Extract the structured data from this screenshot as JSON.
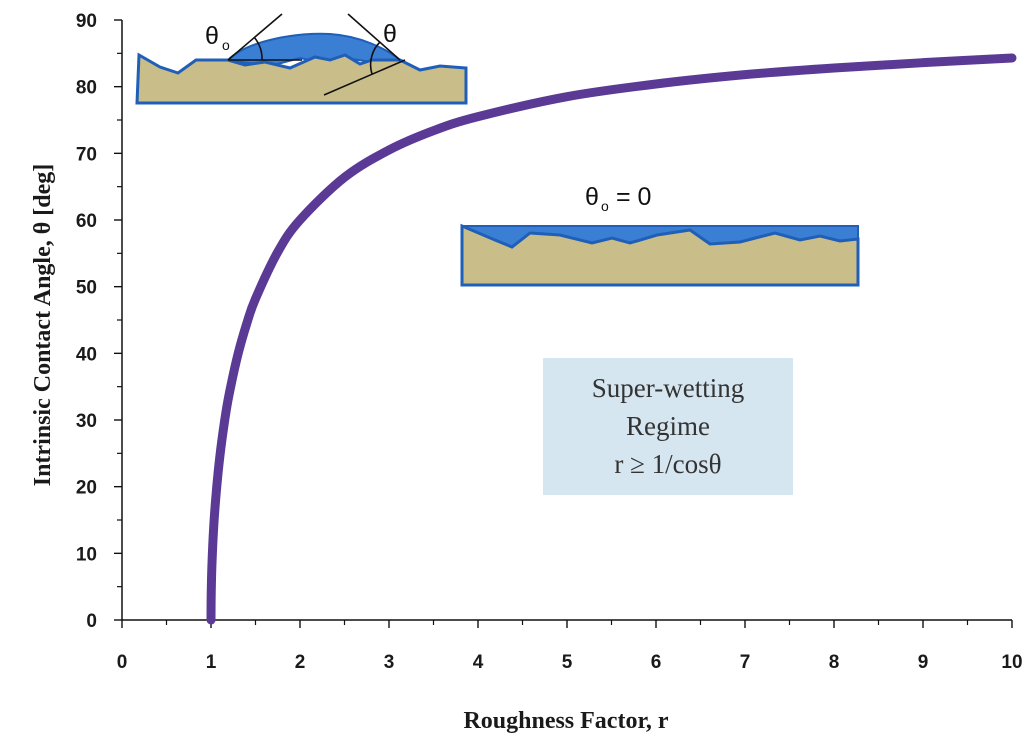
{
  "chart_data": {
    "type": "line",
    "xlabel": "Roughness Factor, r",
    "ylabel": "Intrinsic Contact Angle, θ [deg]",
    "xlim": [
      0,
      10
    ],
    "ylim": [
      0,
      90
    ],
    "x_ticks": [
      "0",
      "1",
      "2",
      "3",
      "4",
      "5",
      "6",
      "7",
      "8",
      "9",
      "10"
    ],
    "y_ticks": [
      "0",
      "10",
      "20",
      "30",
      "40",
      "50",
      "60",
      "70",
      "80",
      "90"
    ],
    "grid": false,
    "series": [
      {
        "x": [
          1.0,
          1.002,
          1.01,
          1.03,
          1.06,
          1.1,
          1.15,
          1.2,
          1.3,
          1.4,
          1.5,
          1.75,
          2.0,
          2.5,
          3.0,
          3.5,
          4.0,
          5.0,
          6.0,
          7.0,
          8.0,
          9.0,
          10.0
        ],
        "y": [
          0.0,
          3.6,
          8.1,
          13.9,
          19.3,
          24.6,
          29.6,
          33.6,
          39.7,
          44.4,
          48.2,
          55.2,
          60.0,
          66.4,
          70.5,
          73.4,
          75.5,
          78.5,
          80.4,
          81.8,
          82.8,
          83.6,
          84.3
        ],
        "color": "#5b3a96"
      }
    ],
    "annotations": {
      "regime_lines": [
        "Super-wetting",
        "Regime",
        "r ≥ 1/cosθ"
      ],
      "regime_box_color": "#d6e6f1",
      "inset_top": {
        "theta_o": "θ",
        "theta_o_sub": "o",
        "theta": "θ"
      },
      "inset_mid": {
        "theta_o": "θ",
        "theta_o_sub": "o",
        "equation": "= 0"
      },
      "liquid_color": "#3b7fd4",
      "solid_color": "#c9bd8a",
      "outline_color": "#1f5fb8"
    }
  }
}
